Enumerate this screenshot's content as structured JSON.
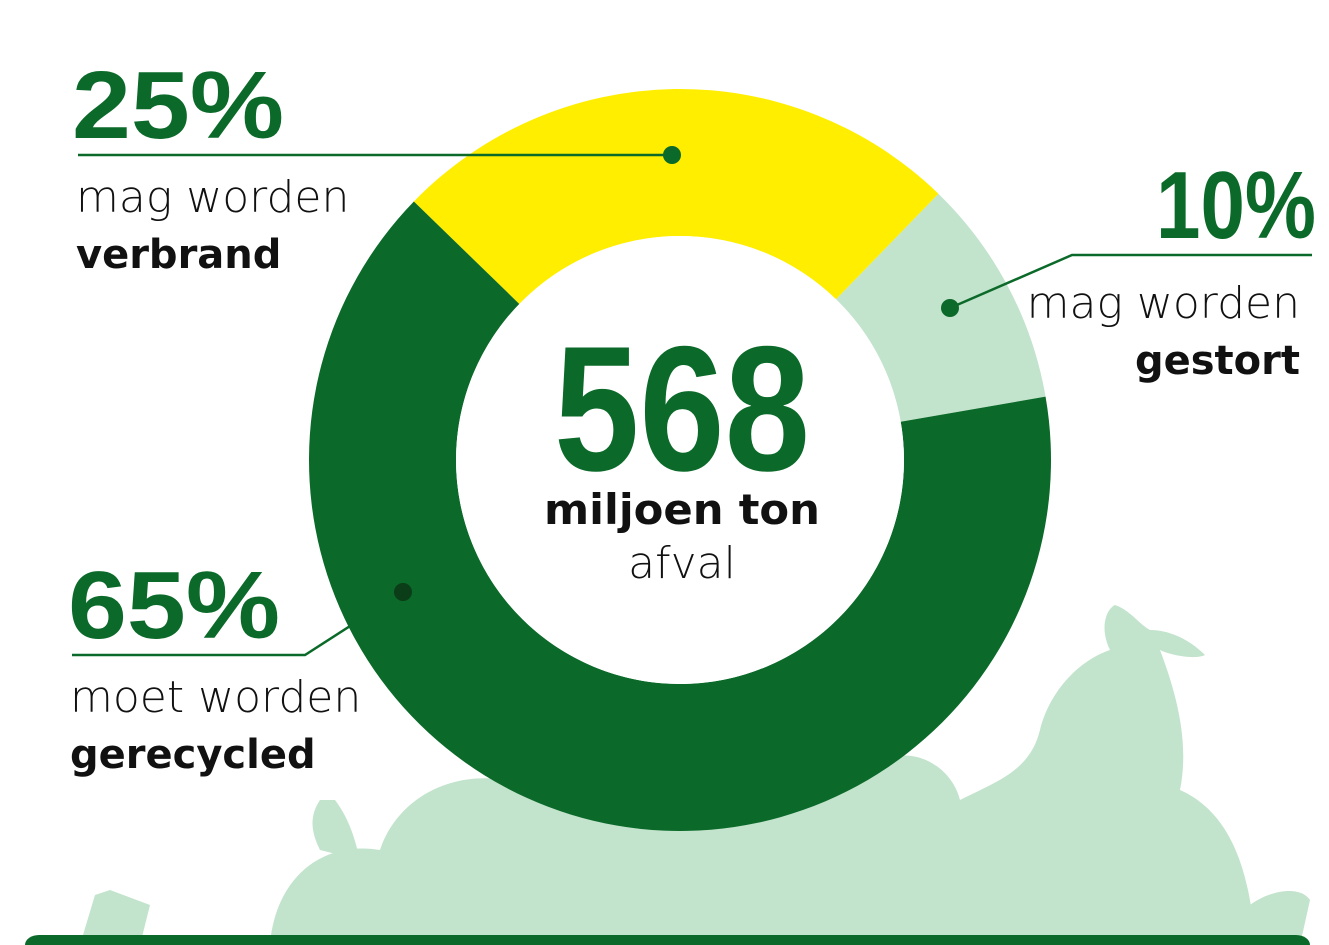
{
  "chart_data": {
    "type": "donut",
    "categories": [
      "verbrand",
      "gestort",
      "gerecycled"
    ],
    "category_prefixes": [
      "mag worden",
      "mag worden",
      "moet worden"
    ],
    "values": [
      25,
      10,
      65
    ],
    "value_labels": [
      "25%",
      "10%",
      "65%"
    ],
    "colors": [
      "#ffee00",
      "#c2e3cc",
      "#0b6a29"
    ],
    "total": 568,
    "total_label": "miljoen ton",
    "total_unit": "afval"
  }
}
